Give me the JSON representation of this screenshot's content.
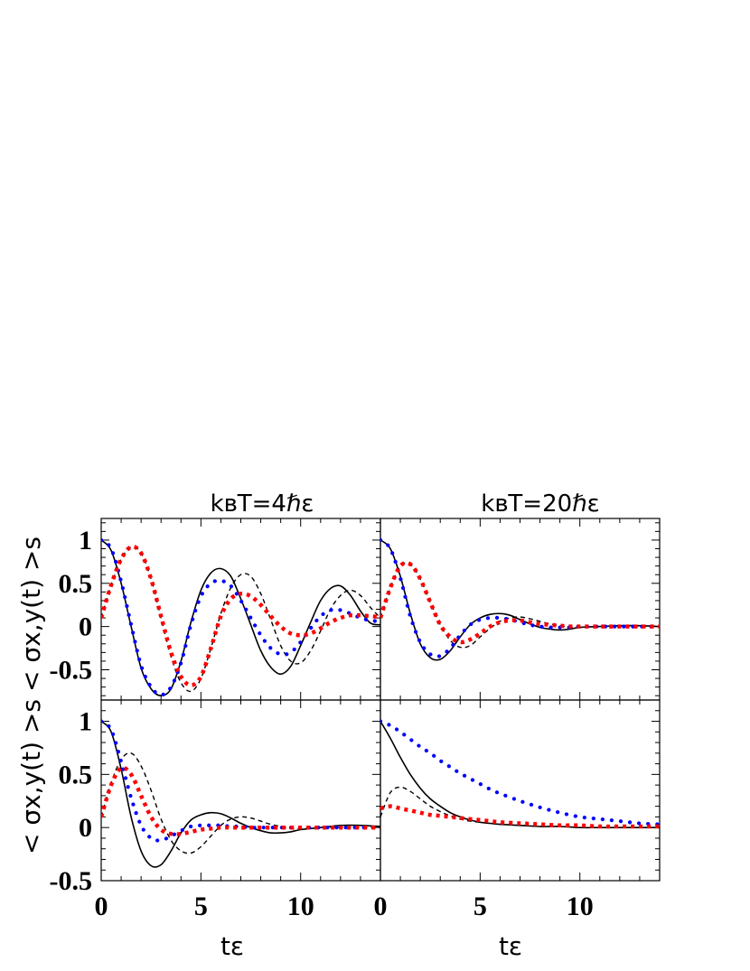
{
  "figure": {
    "col_titles": [
      "kʙT=4ℏε",
      "kʙT=20ℏε"
    ],
    "row_ylabel": "< σx,y(t) >s",
    "xlabel": "tε"
  },
  "chart_data": [
    {
      "type": "line",
      "panel": "top-left",
      "title": "kʙT=4ℏε",
      "xlabel": "",
      "ylabel": "< σx,y(t) >s",
      "xlim": [
        0,
        14
      ],
      "ylim": [
        -0.85,
        1.25
      ],
      "xticks": [],
      "yticks": [
        1,
        0.5,
        0,
        -0.5
      ],
      "ytick_labels": [
        "1",
        "0.5",
        "0",
        "-0.5"
      ],
      "series": [
        {
          "style": "solid",
          "color": "#000000",
          "x": [
            0,
            0.5,
            1,
            1.5,
            2,
            2.5,
            3,
            3.5,
            4,
            4.5,
            5,
            5.5,
            6,
            6.5,
            7,
            7.5,
            8,
            8.5,
            9,
            9.5,
            10,
            10.5,
            11,
            11.5,
            12,
            12.5,
            13,
            13.5,
            14
          ],
          "y": [
            1,
            0.88,
            0.5,
            0,
            -0.48,
            -0.72,
            -0.8,
            -0.72,
            -0.4,
            0.05,
            0.42,
            0.62,
            0.67,
            0.58,
            0.32,
            0.02,
            -0.28,
            -0.47,
            -0.55,
            -0.46,
            -0.22,
            0.05,
            0.3,
            0.44,
            0.47,
            0.36,
            0.18,
            0.04,
            0.02
          ]
        },
        {
          "style": "dashed",
          "color": "#000000",
          "x": [
            0,
            0.5,
            1,
            1.5,
            2,
            2.5,
            3,
            3.5,
            4,
            4.5,
            5,
            5.5,
            6,
            6.5,
            7,
            7.5,
            8,
            8.5,
            9,
            9.5,
            10,
            10.5,
            11,
            11.5,
            12,
            12.5,
            13,
            13.5,
            14
          ],
          "y": [
            0.1,
            0.48,
            0.78,
            0.92,
            0.85,
            0.55,
            0.1,
            -0.35,
            -0.65,
            -0.75,
            -0.6,
            -0.25,
            0.15,
            0.45,
            0.6,
            0.58,
            0.38,
            0.08,
            -0.22,
            -0.4,
            -0.42,
            -0.28,
            -0.05,
            0.2,
            0.36,
            0.42,
            0.36,
            0.22,
            0.1
          ]
        },
        {
          "style": "dotted",
          "color": "#0000ff",
          "x": [
            0,
            0.5,
            1,
            1.5,
            2,
            2.5,
            3,
            3.5,
            4,
            4.5,
            5,
            5.5,
            6,
            6.5,
            7,
            7.5,
            8,
            8.5,
            9,
            9.5,
            10,
            10.5,
            11,
            11.5,
            12,
            12.5,
            13,
            13.5,
            14
          ],
          "y": [
            1,
            0.9,
            0.52,
            0.02,
            -0.45,
            -0.7,
            -0.79,
            -0.7,
            -0.42,
            0.02,
            0.35,
            0.5,
            0.53,
            0.47,
            0.3,
            0.1,
            -0.1,
            -0.25,
            -0.32,
            -0.3,
            -0.18,
            -0.02,
            0.12,
            0.19,
            0.19,
            0.15,
            0.1,
            0.07,
            0.06
          ]
        },
        {
          "style": "dashdot",
          "color": "#ff0000",
          "x": [
            0,
            0.5,
            1,
            1.5,
            2,
            2.5,
            3,
            3.5,
            4,
            4.5,
            5,
            5.5,
            6,
            6.5,
            7,
            7.5,
            8,
            8.5,
            9,
            9.5,
            10,
            10.5,
            11,
            11.5,
            12,
            12.5,
            13,
            13.5,
            14
          ],
          "y": [
            0.1,
            0.48,
            0.78,
            0.92,
            0.85,
            0.55,
            0.12,
            -0.3,
            -0.58,
            -0.68,
            -0.58,
            -0.25,
            0.12,
            0.32,
            0.38,
            0.35,
            0.25,
            0.12,
            0,
            -0.08,
            -0.1,
            -0.08,
            -0.02,
            0.05,
            0.1,
            0.13,
            0.13,
            0.12,
            0.11
          ]
        }
      ]
    },
    {
      "type": "line",
      "panel": "top-right",
      "title": "kʙT=20ℏε",
      "xlabel": "",
      "ylabel": "",
      "xlim": [
        0,
        14
      ],
      "ylim": [
        -0.85,
        1.25
      ],
      "xticks": [],
      "yticks": [],
      "series": [
        {
          "style": "solid",
          "color": "#000000",
          "x": [
            0,
            0.5,
            1,
            1.5,
            2,
            2.5,
            3,
            3.5,
            4,
            4.5,
            5,
            5.5,
            6,
            6.5,
            7,
            7.5,
            8,
            8.5,
            9,
            9.5,
            10,
            11,
            12,
            13,
            14
          ],
          "y": [
            1,
            0.9,
            0.58,
            0.15,
            -0.2,
            -0.36,
            -0.38,
            -0.28,
            -0.12,
            0.02,
            0.1,
            0.14,
            0.15,
            0.13,
            0.08,
            0.03,
            -0.01,
            -0.03,
            -0.04,
            -0.03,
            -0.01,
            0,
            0.01,
            0.01,
            0
          ]
        },
        {
          "style": "dashed",
          "color": "#000000",
          "x": [
            0,
            0.5,
            1,
            1.5,
            2,
            2.5,
            3,
            3.5,
            4,
            4.5,
            5,
            5.5,
            6,
            6.5,
            7,
            7.5,
            8,
            8.5,
            9,
            9.5,
            10,
            11,
            12,
            13,
            14
          ],
          "y": [
            0.1,
            0.45,
            0.7,
            0.72,
            0.55,
            0.28,
            0.02,
            -0.16,
            -0.24,
            -0.22,
            -0.12,
            -0.02,
            0.06,
            0.1,
            0.11,
            0.09,
            0.06,
            0.03,
            0.01,
            -0.01,
            -0.01,
            0,
            0,
            0,
            0
          ]
        },
        {
          "style": "dotted",
          "color": "#0000ff",
          "x": [
            0,
            0.5,
            1,
            1.5,
            2,
            2.5,
            3,
            3.5,
            4,
            4.5,
            5,
            5.5,
            6,
            6.5,
            7,
            7.5,
            8,
            8.5,
            9,
            9.5,
            10,
            11,
            12,
            13,
            14
          ],
          "y": [
            1,
            0.9,
            0.56,
            0.12,
            -0.18,
            -0.32,
            -0.34,
            -0.25,
            -0.1,
            0.02,
            0.08,
            0.1,
            0.1,
            0.08,
            0.05,
            0.02,
            0,
            -0.01,
            -0.01,
            -0.01,
            0,
            0,
            0,
            0,
            0
          ]
        },
        {
          "style": "dashdot",
          "color": "#ff0000",
          "x": [
            0,
            0.5,
            1,
            1.5,
            2,
            2.5,
            3,
            3.5,
            4,
            4.5,
            5,
            5.5,
            6,
            6.5,
            7,
            7.5,
            8,
            8.5,
            9,
            9.5,
            10,
            11,
            12,
            13,
            14
          ],
          "y": [
            0.1,
            0.45,
            0.7,
            0.72,
            0.55,
            0.28,
            0.02,
            -0.12,
            -0.18,
            -0.15,
            -0.08,
            0,
            0.05,
            0.07,
            0.07,
            0.05,
            0.03,
            0.02,
            0.01,
            0,
            0,
            0,
            0,
            0,
            0
          ]
        }
      ]
    },
    {
      "type": "line",
      "panel": "bottom-left",
      "title": "",
      "xlabel": "tε",
      "ylabel": "< σx,y(t) >s",
      "xlim": [
        0,
        14
      ],
      "ylim": [
        -0.5,
        1.2
      ],
      "xticks": [
        0,
        5,
        10
      ],
      "xtick_labels": [
        "0",
        "5",
        "10"
      ],
      "yticks": [
        1,
        0.5,
        0,
        -0.5
      ],
      "ytick_labels": [
        "1",
        "0.5",
        "0",
        "-0.5"
      ],
      "series": [
        {
          "style": "solid",
          "color": "#000000",
          "x": [
            0,
            0.5,
            1,
            1.5,
            2,
            2.5,
            3,
            3.5,
            4,
            4.5,
            5,
            5.5,
            6,
            6.5,
            7,
            7.5,
            8,
            8.5,
            9,
            9.5,
            10,
            11,
            12,
            13,
            14
          ],
          "y": [
            1,
            0.9,
            0.55,
            0.1,
            -0.22,
            -0.36,
            -0.35,
            -0.22,
            -0.05,
            0.07,
            0.12,
            0.14,
            0.13,
            0.09,
            0.04,
            0,
            -0.03,
            -0.05,
            -0.05,
            -0.04,
            -0.02,
            0,
            0.02,
            0.02,
            0.01
          ]
        },
        {
          "style": "dashed",
          "color": "#000000",
          "x": [
            0,
            0.5,
            1,
            1.5,
            2,
            2.5,
            3,
            3.5,
            4,
            4.5,
            5,
            5.5,
            6,
            6.5,
            7,
            7.5,
            8,
            8.5,
            9,
            9.5,
            10,
            11,
            12,
            13,
            14
          ],
          "y": [
            0.1,
            0.42,
            0.64,
            0.7,
            0.58,
            0.35,
            0.08,
            -0.12,
            -0.22,
            -0.24,
            -0.18,
            -0.08,
            0.02,
            0.08,
            0.1,
            0.09,
            0.06,
            0.03,
            0.01,
            -0.01,
            -0.01,
            0,
            0,
            0,
            0
          ]
        },
        {
          "style": "dotted",
          "color": "#0000ff",
          "x": [
            0,
            0.5,
            1,
            1.5,
            2,
            2.5,
            3,
            3.5,
            4,
            4.5,
            5,
            5.5,
            6,
            6.5,
            7,
            7.5,
            8,
            8.5,
            9,
            9.5,
            10,
            11,
            12,
            13,
            14
          ],
          "y": [
            1,
            0.92,
            0.62,
            0.28,
            0.02,
            -0.1,
            -0.12,
            -0.08,
            -0.03,
            0.01,
            0.02,
            0.02,
            0.02,
            0.01,
            0.01,
            0,
            0,
            0,
            0,
            0,
            0,
            0,
            0,
            0,
            0
          ]
        },
        {
          "style": "dashdot",
          "color": "#ff0000",
          "x": [
            0,
            0.5,
            1,
            1.5,
            2,
            2.5,
            3,
            3.5,
            4,
            4.5,
            5,
            5.5,
            6,
            6.5,
            7,
            7.5,
            8,
            8.5,
            9,
            9.5,
            10,
            11,
            12,
            13,
            14
          ],
          "y": [
            0.1,
            0.4,
            0.56,
            0.5,
            0.3,
            0.1,
            -0.02,
            -0.06,
            -0.06,
            -0.04,
            -0.02,
            -0.01,
            0,
            0,
            0,
            0,
            0,
            0,
            0,
            0,
            0,
            0,
            0,
            0,
            0
          ]
        }
      ]
    },
    {
      "type": "line",
      "panel": "bottom-right",
      "title": "",
      "xlabel": "tε",
      "ylabel": "",
      "xlim": [
        0,
        14
      ],
      "ylim": [
        -0.5,
        1.2
      ],
      "xticks": [
        0,
        5,
        10
      ],
      "xtick_labels": [
        "0",
        "5",
        "10"
      ],
      "yticks": [],
      "series": [
        {
          "style": "solid",
          "color": "#000000",
          "x": [
            0,
            0.5,
            1,
            1.5,
            2,
            2.5,
            3,
            3.5,
            4,
            4.5,
            5,
            5.5,
            6,
            7,
            8,
            9,
            10,
            11,
            12,
            13,
            14
          ],
          "y": [
            1,
            0.84,
            0.66,
            0.5,
            0.37,
            0.27,
            0.2,
            0.14,
            0.1,
            0.07,
            0.05,
            0.04,
            0.03,
            0.02,
            0.01,
            0.01,
            0,
            0,
            0,
            0,
            0
          ]
        },
        {
          "style": "dashed",
          "color": "#000000",
          "x": [
            0,
            0.5,
            1,
            1.5,
            2,
            2.5,
            3,
            3.5,
            4,
            4.5,
            5,
            5.5,
            6,
            7,
            8,
            9,
            10,
            11,
            12,
            13,
            14
          ],
          "y": [
            0.1,
            0.33,
            0.38,
            0.34,
            0.27,
            0.2,
            0.15,
            0.11,
            0.08,
            0.06,
            0.05,
            0.04,
            0.03,
            0.02,
            0.01,
            0.01,
            0,
            0,
            0,
            0,
            0
          ]
        },
        {
          "style": "dotted",
          "color": "#0000ff",
          "x": [
            0,
            0.5,
            1,
            1.5,
            2,
            2.5,
            3,
            3.5,
            4,
            4.5,
            5,
            5.5,
            6,
            7,
            8,
            9,
            10,
            11,
            12,
            13,
            14
          ],
          "y": [
            1,
            0.96,
            0.9,
            0.83,
            0.76,
            0.7,
            0.63,
            0.57,
            0.51,
            0.46,
            0.41,
            0.36,
            0.32,
            0.25,
            0.19,
            0.14,
            0.1,
            0.08,
            0.06,
            0.04,
            0.03
          ]
        },
        {
          "style": "dashdot",
          "color": "#ff0000",
          "x": [
            0,
            0.5,
            1,
            1.5,
            2,
            2.5,
            3,
            3.5,
            4,
            4.5,
            5,
            5.5,
            6,
            7,
            8,
            9,
            10,
            11,
            12,
            13,
            14
          ],
          "y": [
            0.18,
            0.2,
            0.18,
            0.16,
            0.14,
            0.12,
            0.11,
            0.1,
            0.09,
            0.08,
            0.07,
            0.06,
            0.05,
            0.04,
            0.03,
            0.02,
            0.02,
            0.01,
            0.01,
            0.01,
            0.01
          ]
        }
      ]
    }
  ]
}
